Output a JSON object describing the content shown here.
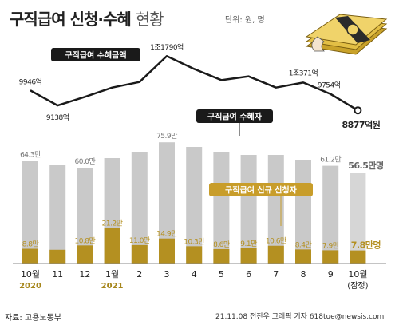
{
  "title_main": "구직급여 신청·수혜",
  "title_sub": "현황",
  "unit_note": "단위: 원, 명",
  "source": "자료: 고용노동부",
  "credit": "21.11.08 전진우 그래픽 기자 618tue@newsis.com",
  "colors": {
    "amount_line": "#1a1a1a",
    "beneficiary_bar": "#c9c9c9",
    "beneficiary_bar_prelim": "#d6d6d6",
    "new_applicant_bar": "#b49021",
    "label_box": "#1a1a1a",
    "highlight_box": "#c89d2a",
    "year_text": "#a6861b",
    "last_value_text": "#b49021"
  },
  "chart_data": {
    "type": "bar+line",
    "categories": [
      "10월",
      "11",
      "12",
      "1월",
      "2",
      "3",
      "4",
      "5",
      "6",
      "7",
      "8",
      "9",
      "10월"
    ],
    "year_labels": [
      "2020",
      "",
      "",
      "2021",
      "",
      "",
      "",
      "",
      "",
      "",
      "",
      "",
      "(잠정)"
    ],
    "series": [
      {
        "name": "구직급여 수혜금액",
        "kind": "line",
        "unit": "억원",
        "values": [
          9946,
          9138,
          9600,
          10100,
          10400,
          11790,
          11100,
          10500,
          10700,
          10100,
          10371,
          9754,
          8877
        ],
        "value_labels": [
          "9946억",
          "9138억",
          "",
          "",
          "",
          "1조1790억",
          "",
          "",
          "",
          "",
          "1조371억",
          "9754억",
          "8877억원"
        ]
      },
      {
        "name": "구직급여 수혜자",
        "kind": "bar",
        "unit": "만명",
        "values": [
          64.3,
          62.0,
          60.0,
          66.0,
          70.0,
          75.9,
          73.0,
          70.0,
          68.0,
          68.0,
          65.0,
          61.2,
          56.5
        ],
        "value_labels": [
          "64.3만",
          "",
          "60.0만",
          "",
          "",
          "75.9만",
          "",
          "",
          "",
          "",
          "",
          "61.2만",
          "56.5만명"
        ]
      },
      {
        "name": "구직급여 신규 신청자",
        "kind": "bar",
        "unit": "만명",
        "values": [
          8.8,
          8.2,
          10.8,
          21.2,
          11.0,
          14.9,
          10.3,
          8.6,
          9.1,
          10.6,
          8.4,
          7.9,
          7.8
        ],
        "value_labels": [
          "8.8만",
          "",
          "10.8만",
          "21.2만",
          "11.0만",
          "14.9만",
          "10.3만",
          "8.6만",
          "9.1만",
          "10.6만",
          "8.4만",
          "7.9만",
          "7.8만명"
        ]
      }
    ]
  }
}
